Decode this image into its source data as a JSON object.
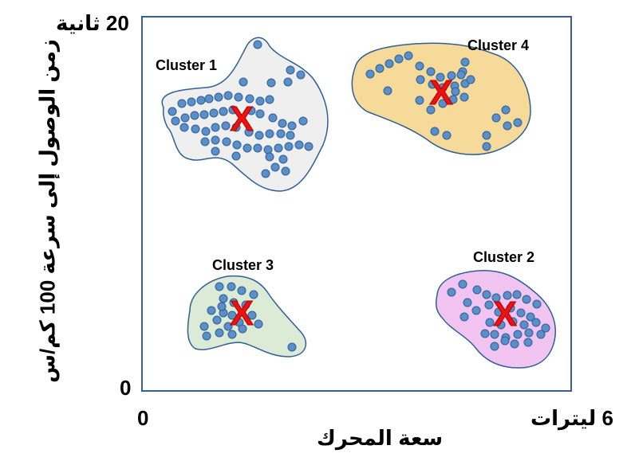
{
  "axes": {
    "y_max_label": "20 ثانية",
    "y_min_label": "0",
    "x_min_label": "0",
    "x_max_label": "6 ليترات",
    "y_title": "زمن الوصول إلى سرعة 100 كم/س",
    "x_title": "سعة المحرك"
  },
  "colors": {
    "point": "#5b8fc9",
    "point_stroke": "#2f5f95",
    "outline": "#2f5f95",
    "centroid": "#ee1111",
    "cluster1_fill": "#efefef",
    "cluster2_fill": "#f2c4f2",
    "cluster3_fill": "#dcebd5",
    "cluster4_fill": "#f6da9a"
  },
  "clusters": [
    {
      "label": "Cluster 1",
      "centroid_symbol": "X"
    },
    {
      "label": "Cluster 2",
      "centroid_symbol": "X"
    },
    {
      "label": "Cluster 3",
      "centroid_symbol": "X"
    },
    {
      "label": "Cluster 4",
      "centroid_symbol": "X"
    }
  ]
}
